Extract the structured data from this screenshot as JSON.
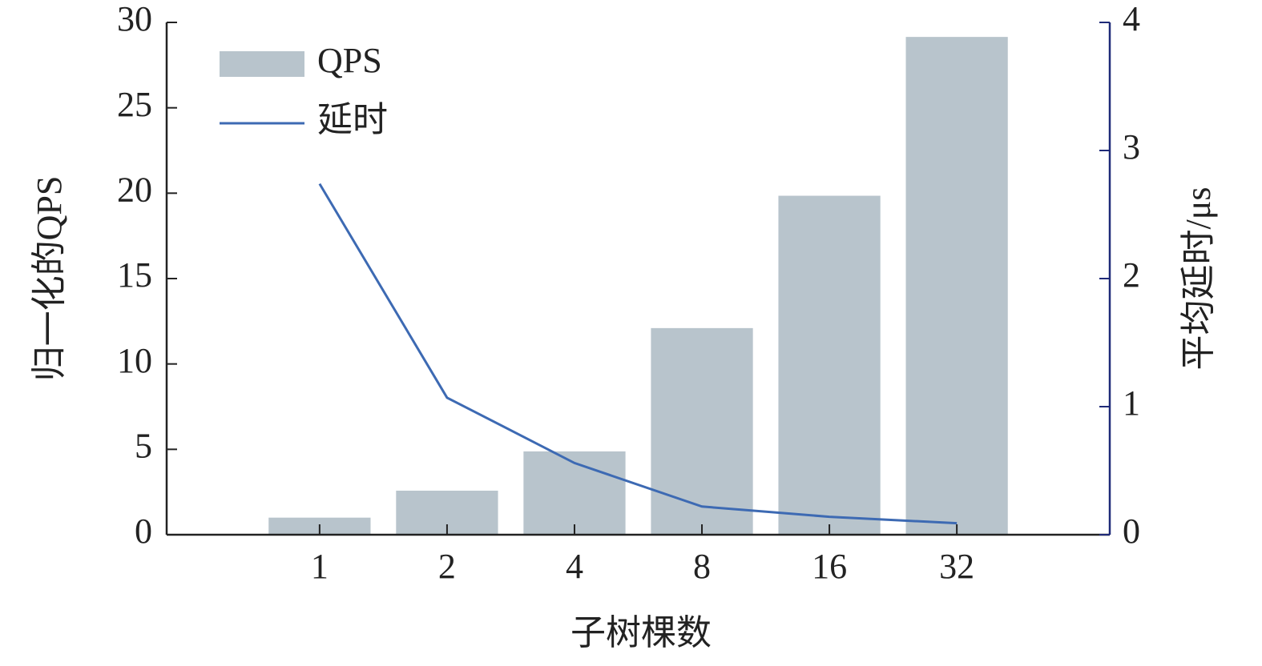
{
  "chart_data": {
    "type": "bar-line",
    "xlabel": "子树棵数",
    "ylabel": "归一化的QPS",
    "y2label": "平均延时/μs",
    "categories": [
      "1",
      "2",
      "4",
      "8",
      "16",
      "32"
    ],
    "series": [
      {
        "name": "QPS",
        "type": "bar",
        "color": "#b8c4cc",
        "values": [
          1.0,
          2.58,
          4.88,
          12.1,
          19.85,
          29.15
        ]
      },
      {
        "name": "延时",
        "type": "line",
        "axis": "y2",
        "color": "#3d6ab3",
        "values": [
          2.74,
          1.07,
          0.56,
          0.22,
          0.14,
          0.09
        ]
      }
    ],
    "ylim": [
      0,
      30
    ],
    "yticks": [
      0,
      5,
      10,
      15,
      20,
      25,
      30
    ],
    "y2lim": [
      0,
      4
    ],
    "y2ticks": [
      0,
      1,
      2,
      3,
      4
    ],
    "legend": "upper left"
  }
}
